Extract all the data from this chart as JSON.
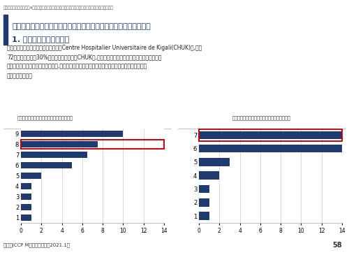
{
  "bg_color": "#ffffff",
  "bar_color": "#1e3a6e",
  "highlight_color": "#cc0000",
  "title_line1": "ルワンダ基礎調査（ターゲット顧客の思考・行動と競合サービス）",
  "title_line2": "1. 病院の選択：出産病院",
  "subtitle_small": "ルワンダ／両区域調査／4．市場・投資環境調査情報／業界構造・主要企業、競合（日本企業以外）",
  "body_text": "　両地区で最も選択されている病院はCentre Hospitalier Universitaire de Kigali(CHUK)で,延べ\n72出産数のうちの30%が同病院での出産。CHUKは,医師のスキルが高く医療設備が整っておりリ\nスクの高い出産に対応できる一方で,公共医療施設のため価格が安いということが選択理由として\nあげられている。",
  "chart1_title": "図表５３　出産した病院はどこか（キガリ）",
  "chart2_title": "図表５４　出産した病院はどこか（ブゲセラ）",
  "chart1_categories": [
    9,
    8,
    7,
    6,
    5,
    4,
    3,
    2,
    1
  ],
  "chart1_values": [
    10,
    7.5,
    6.5,
    5,
    2,
    1,
    1,
    1,
    1
  ],
  "chart1_highlight": 8,
  "chart2_categories": [
    7,
    6,
    5,
    4,
    3,
    2,
    1
  ],
  "chart2_values": [
    14,
    14,
    3,
    2,
    1,
    1,
    1
  ],
  "chart2_highlight": 7,
  "xticks": [
    0,
    2,
    4,
    6,
    8,
    10,
    12,
    14
  ],
  "footer_text": "出所：JCCP M株式会社作成（2021.1）",
  "page_number": "58"
}
